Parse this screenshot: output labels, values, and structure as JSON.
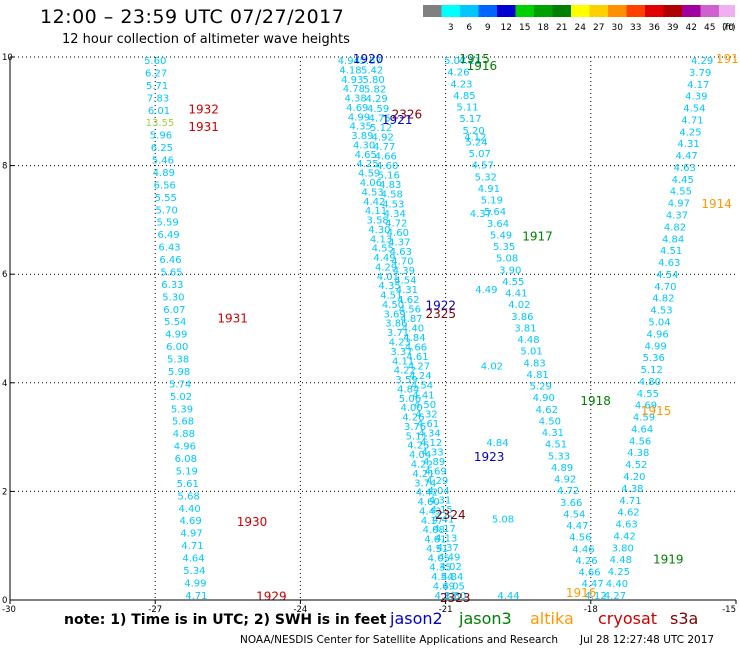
{
  "header": {
    "title": "12:00 – 23:59 UTC 07/27/2017",
    "subtitle": "12 hour collection of altimeter wave heights"
  },
  "colorbar": {
    "unit_label": "(ft)",
    "bins": [
      {
        "label": "",
        "color": "#808080"
      },
      {
        "label": "3",
        "color": "#00ffff"
      },
      {
        "label": "6",
        "color": "#00c8ff"
      },
      {
        "label": "9",
        "color": "#0064ff"
      },
      {
        "label": "12",
        "color": "#0000d0"
      },
      {
        "label": "15",
        "color": "#00d000"
      },
      {
        "label": "18",
        "color": "#00a000"
      },
      {
        "label": "21",
        "color": "#008000"
      },
      {
        "label": "24",
        "color": "#ffff00"
      },
      {
        "label": "27",
        "color": "#ffd000"
      },
      {
        "label": "30",
        "color": "#ff9000"
      },
      {
        "label": "33",
        "color": "#ff4000"
      },
      {
        "label": "36",
        "color": "#e00000"
      },
      {
        "label": "39",
        "color": "#b00000"
      },
      {
        "label": "42",
        "color": "#a000a0"
      },
      {
        "label": "45",
        "color": "#d060d0"
      },
      {
        "label": "70",
        "color": "#f0b0f0"
      }
    ]
  },
  "footer": {
    "note": "note: 1) Time is in UTC; 2) SWH is in feet",
    "missions": [
      {
        "name": "jason2",
        "color": "#0000cc"
      },
      {
        "name": "jason3",
        "color": "#008000"
      },
      {
        "name": "altika",
        "color": "#ff9900"
      },
      {
        "name": "cryosat",
        "color": "#cc0000"
      },
      {
        "name": "s3a",
        "color": "#800000"
      }
    ],
    "credit": "NOAA/NESDIS Center for Satellite Applications and Research",
    "timestamp": "Jul 28 12:27:48 UTC 2017"
  },
  "chart_data": {
    "type": "scatter",
    "title": "12:00 – 23:59 UTC 07/27/2017",
    "subtitle": "12 hour collection of altimeter wave heights",
    "xlim": [
      -30,
      -15
    ],
    "ylim": [
      0,
      10
    ],
    "xticks": [
      "-30",
      "-27",
      "-24",
      "-21",
      "-18",
      "-15"
    ],
    "yticks": [
      "0",
      "2",
      "4",
      "6",
      "8",
      "10"
    ],
    "grid": true,
    "default_color": "#00c8ff",
    "tracks": [
      {
        "name": "cryosat-west",
        "x0": -27.0,
        "x1": -26.15,
        "values": [
          "5.60",
          "6.27",
          "5.71",
          "7.83",
          "6.01",
          "13.55",
          "5.96",
          "6.25",
          "5.46",
          "4.89",
          "6.56",
          "5.55",
          "5.70",
          "5.59",
          "6.49",
          "6.43",
          "6.46",
          "5.65",
          "6.33",
          "5.30",
          "6.07",
          "5.54",
          "4.99",
          "6.00",
          "5.38",
          "5.98",
          "5.74",
          "5.02",
          "5.39",
          "5.68",
          "4.88",
          "4.96",
          "6.08",
          "5.19",
          "5.61",
          "5.68",
          "4.40",
          "4.69",
          "4.97",
          "4.71",
          "4.64",
          "5.34",
          "4.99",
          "4.71"
        ],
        "colors": {
          "5": "#a0d040"
        }
      },
      {
        "name": "jason2-1920-1922",
        "x0": -23.0,
        "x1": -21.0,
        "values": [
          "4.94",
          "4.18",
          "4.93",
          "4.78",
          "4.38",
          "4.69",
          "4.99",
          "4.35",
          "3.89",
          "4.30",
          "4.65",
          "4.25",
          "4.59",
          "4.06",
          "4.53",
          "4.42",
          "4.11",
          "3.58",
          "4.30",
          "4.13",
          "4.55",
          "4.49",
          "4.29",
          "4.01",
          "4.35",
          "4.51",
          "4.50",
          "3.69",
          "3.86",
          "3.71",
          "4.23",
          "3.37",
          "4.11",
          "4.22",
          "3.59",
          "4.84",
          "5.06",
          "4.00",
          "4.26",
          "3.76",
          "5.11",
          "4.25",
          "4.04",
          "4.22",
          "4.21",
          "3.74",
          "4.42",
          "4.60",
          "4.43",
          "4.17",
          "4.08",
          "4.61",
          "4.51",
          "4.05",
          "4.35",
          "4.54",
          "4.69",
          "4.13"
        ]
      },
      {
        "name": "jason2-2326-2325",
        "x0": -22.55,
        "x1": -20.8,
        "values": [
          "5.67",
          "5.42",
          "5.80",
          "5.82",
          "4.29",
          "4.59",
          "4.75",
          "5.12",
          "4.92",
          "4.77",
          "4.66",
          "4.60",
          "5.16",
          "4.83",
          "4.58",
          "4.53",
          "4.34",
          "4.72",
          "4.60",
          "4.37",
          "4.63",
          "4.70",
          "4.39",
          "4.54",
          "4.31",
          "4.62",
          "4.56",
          "4.87",
          "4.40",
          "4.84",
          "4.66",
          "4.61",
          "4.27",
          "4.24",
          "4.54",
          "4.41",
          "4.50",
          "4.32",
          "4.61",
          "4.34",
          "4.12",
          "4.33",
          "4.89",
          "4.69",
          "4.29",
          "4.04",
          "4.31",
          "4.15",
          "4.41",
          "4.17",
          "4.13",
          "4.37",
          "4.49",
          "4.02",
          "4.84",
          "4.05",
          "3.80"
        ]
      },
      {
        "name": "jason3-1915-1918",
        "x0": -20.8,
        "x1": -17.9,
        "values": [
          "5.07",
          "4.26",
          "4.23",
          "4.85",
          "5.11",
          "5.17",
          "5.20",
          "5.24",
          "5.07",
          "4.57",
          "5.32",
          "4.91",
          "5.19",
          "5.64",
          "3.64",
          "5.49",
          "5.35",
          "5.08",
          "3.90",
          "4.55",
          "4.41",
          "4.02",
          "3.86",
          "3.81",
          "4.48",
          "5.01",
          "4.83",
          "4.81",
          "5.29",
          "4.90",
          "4.62",
          "4.50",
          "4.31",
          "4.51",
          "5.33",
          "4.89",
          "4.92",
          "4.72",
          "3.66",
          "4.54",
          "4.47",
          "4.56",
          "4.46",
          "4.26",
          "4.66",
          "4.47",
          "4.12"
        ]
      },
      {
        "name": "jason2-2324-2323",
        "x0": -20.5,
        "x1": -19.7,
        "values": [
          "4.11",
          "4.12",
          "4.37",
          "4.49",
          "4.02",
          "4.84",
          "5.08",
          "4.44"
        ]
      },
      {
        "name": "altika-1913-1915-1916",
        "x0": -15.7,
        "x1": -17.5,
        "values": [
          "4.29",
          "3.79",
          "4.17",
          "4.39",
          "4.54",
          "4.71",
          "4.25",
          "4.31",
          "4.47",
          "4.63",
          "4.45",
          "4.55",
          "4.97",
          "4.37",
          "4.82",
          "4.84",
          "4.51",
          "4.63",
          "4.54",
          "4.70",
          "4.82",
          "4.53",
          "5.04",
          "4.96",
          "4.99",
          "5.36",
          "5.12",
          "4.80",
          "4.55",
          "4.69",
          "4.59",
          "4.64",
          "4.56",
          "4.38",
          "4.52",
          "4.20",
          "4.38",
          "4.71",
          "4.62",
          "4.63",
          "4.42",
          "3.80",
          "4.48",
          "4.25",
          "4.40",
          "4.27"
        ]
      }
    ],
    "pass_labels": [
      {
        "text": "1920",
        "x": -22.6,
        "y": 10.0,
        "color": "#0000cc"
      },
      {
        "text": "1915",
        "x": -20.4,
        "y": 10.0,
        "color": "#008000"
      },
      {
        "text": "1916",
        "x": -20.25,
        "y": 9.87,
        "color": "#008000"
      },
      {
        "text": "1913",
        "x": -15.1,
        "y": 10.0,
        "color": "#ff9900"
      },
      {
        "text": "1932",
        "x": -26.0,
        "y": 9.07,
        "color": "#cc0000"
      },
      {
        "text": "1931",
        "x": -26.0,
        "y": 8.75,
        "color": "#cc0000"
      },
      {
        "text": "2326",
        "x": -21.8,
        "y": 8.98,
        "color": "#800000"
      },
      {
        "text": "1921",
        "x": -22.0,
        "y": 8.88,
        "color": "#0000cc"
      },
      {
        "text": "1914",
        "x": -15.4,
        "y": 7.33,
        "color": "#ff9900"
      },
      {
        "text": "1917",
        "x": -19.1,
        "y": 6.73,
        "color": "#008000"
      },
      {
        "text": "1922",
        "x": -21.1,
        "y": 5.46,
        "color": "#0000cc"
      },
      {
        "text": "2325",
        "x": -21.1,
        "y": 5.3,
        "color": "#800000"
      },
      {
        "text": "1931",
        "x": -25.4,
        "y": 5.22,
        "color": "#cc0000"
      },
      {
        "text": "1918",
        "x": -17.9,
        "y": 3.7,
        "color": "#008000"
      },
      {
        "text": "1915",
        "x": -16.65,
        "y": 3.52,
        "color": "#ff9900"
      },
      {
        "text": "1923",
        "x": -20.1,
        "y": 2.67,
        "color": "#0000cc"
      },
      {
        "text": "2324",
        "x": -20.9,
        "y": 1.6,
        "color": "#800000"
      },
      {
        "text": "1930",
        "x": -25.0,
        "y": 1.47,
        "color": "#cc0000"
      },
      {
        "text": "1919",
        "x": -16.4,
        "y": 0.78,
        "color": "#008000"
      },
      {
        "text": "1929",
        "x": -24.6,
        "y": 0.1,
        "color": "#cc0000"
      },
      {
        "text": "2323",
        "x": -20.8,
        "y": 0.07,
        "color": "#800000"
      },
      {
        "text": "1916",
        "x": -18.2,
        "y": 0.17,
        "color": "#ff9900"
      }
    ]
  }
}
